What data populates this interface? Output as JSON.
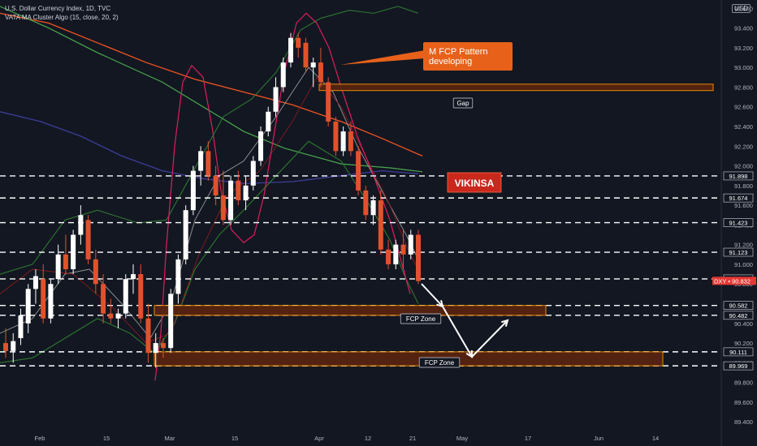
{
  "header": {
    "title": "U.S. Dollar Currency Index, 1D, TVC",
    "indicator": "VATA MA Cluster Algo (15, close, 20, 2)",
    "currency": "USD"
  },
  "annotations": {
    "callout": "M FCP Pattern\ndeveloping",
    "gap_label": "Gap",
    "fcp_zone_label": "FCP Zone",
    "brand": "VIKINSA",
    "last_price_symbol": "DXY",
    "last_price": "90.832"
  },
  "colors": {
    "background": "#131722",
    "up_candle": "#ffffff",
    "down_candle": "#e0522c",
    "zone_fill": "#5a2410",
    "zone_border": "#ff9800",
    "callout_bg": "#e8611a",
    "brand_bg": "#c9281d",
    "envelope": "#e91e63",
    "bollinger": "#2e7d32",
    "ma_orange": "#ff5722",
    "ma_green": "#4caf50",
    "ma_navy": "#3f3fa0"
  },
  "chart_data": {
    "type": "candlestick",
    "symbol": "DXY",
    "interval": "1D",
    "y_axis": {
      "ticks": [
        "93.600",
        "93.400",
        "93.200",
        "93.000",
        "92.800",
        "92.600",
        "92.400",
        "92.200",
        "92.000",
        "91.800",
        "91.600",
        "91.400",
        "91.200",
        "91.000",
        "90.800",
        "90.600",
        "90.400",
        "90.200",
        "90.000",
        "89.800",
        "89.600",
        "89.400"
      ],
      "level_labels": [
        "91.898",
        "91.674",
        "91.423",
        "91.123",
        "90.852",
        "90.582",
        "90.482",
        "90.111",
        "89.969"
      ],
      "range": [
        89.35,
        93.75
      ]
    },
    "x_axis": {
      "labels": [
        "Feb",
        "15",
        "Mar",
        "15",
        "Apr",
        "12",
        "21",
        "May",
        "17",
        "Jun",
        "14"
      ]
    },
    "horizontal_levels": [
      91.898,
      91.674,
      91.423,
      91.123,
      90.852,
      90.582,
      90.482,
      90.111,
      89.969
    ],
    "zones": [
      {
        "label": "Gap",
        "low": 92.765,
        "high": 92.83
      },
      {
        "label": "FCP Zone",
        "low": 90.482,
        "high": 90.582
      },
      {
        "label": "FCP Zone",
        "low": 89.969,
        "high": 90.111
      }
    ],
    "candles": [
      [
        90.2,
        90.35,
        90.05,
        90.12
      ],
      [
        90.12,
        90.3,
        90.0,
        90.22
      ],
      [
        90.25,
        90.55,
        90.18,
        90.48
      ],
      [
        90.4,
        90.8,
        90.3,
        90.75
      ],
      [
        90.75,
        90.95,
        90.6,
        90.88
      ],
      [
        90.85,
        91.0,
        90.4,
        90.45
      ],
      [
        90.45,
        90.85,
        90.4,
        90.8
      ],
      [
        90.85,
        91.2,
        90.8,
        91.1
      ],
      [
        91.1,
        91.3,
        90.9,
        90.95
      ],
      [
        90.95,
        91.35,
        90.9,
        91.3
      ],
      [
        91.3,
        91.6,
        91.2,
        91.5
      ],
      [
        91.45,
        91.5,
        91.0,
        91.05
      ],
      [
        91.05,
        91.15,
        90.7,
        90.8
      ],
      [
        90.8,
        90.9,
        90.4,
        90.5
      ],
      [
        90.5,
        90.65,
        90.4,
        90.45
      ],
      [
        90.45,
        90.55,
        90.35,
        90.5
      ],
      [
        90.5,
        90.9,
        90.45,
        90.85
      ],
      [
        90.85,
        91.0,
        90.7,
        90.9
      ],
      [
        90.9,
        91.0,
        90.4,
        90.45
      ],
      [
        90.45,
        90.6,
        90.0,
        90.1
      ],
      [
        90.1,
        90.3,
        89.95,
        90.2
      ],
      [
        90.2,
        90.25,
        90.05,
        90.15
      ],
      [
        90.15,
        90.75,
        90.1,
        90.7
      ],
      [
        90.7,
        91.1,
        90.6,
        91.05
      ],
      [
        91.05,
        91.6,
        91.0,
        91.55
      ],
      [
        91.55,
        92.0,
        91.5,
        91.95
      ],
      [
        91.95,
        92.2,
        91.8,
        92.15
      ],
      [
        92.15,
        92.25,
        91.85,
        91.9
      ],
      [
        91.9,
        92.0,
        91.6,
        91.7
      ],
      [
        91.7,
        91.95,
        91.4,
        91.45
      ],
      [
        91.45,
        91.9,
        91.4,
        91.85
      ],
      [
        91.85,
        91.95,
        91.6,
        91.65
      ],
      [
        91.65,
        91.9,
        91.55,
        91.8
      ],
      [
        91.8,
        92.1,
        91.75,
        92.05
      ],
      [
        92.05,
        92.4,
        92.0,
        92.35
      ],
      [
        92.35,
        92.6,
        92.3,
        92.55
      ],
      [
        92.55,
        92.9,
        92.5,
        92.8
      ],
      [
        92.8,
        93.1,
        92.75,
        93.05
      ],
      [
        93.05,
        93.35,
        93.0,
        93.3
      ],
      [
        93.3,
        93.35,
        93.1,
        93.2
      ],
      [
        93.25,
        93.3,
        92.95,
        93.0
      ],
      [
        93.0,
        93.1,
        92.8,
        93.05
      ],
      [
        93.05,
        93.2,
        92.8,
        92.85
      ],
      [
        92.85,
        92.9,
        92.4,
        92.45
      ],
      [
        92.45,
        92.5,
        92.1,
        92.15
      ],
      [
        92.15,
        92.4,
        92.1,
        92.35
      ],
      [
        92.35,
        92.45,
        92.1,
        92.15
      ],
      [
        92.15,
        92.2,
        91.7,
        91.75
      ],
      [
        91.75,
        91.8,
        91.45,
        91.5
      ],
      [
        91.5,
        91.7,
        91.4,
        91.65
      ],
      [
        91.65,
        91.75,
        91.1,
        91.15
      ],
      [
        91.15,
        91.25,
        90.95,
        91.0
      ],
      [
        91.0,
        91.25,
        90.95,
        91.2
      ],
      [
        91.2,
        91.35,
        90.95,
        91.1
      ],
      [
        91.1,
        91.35,
        91.05,
        91.3
      ],
      [
        91.3,
        91.35,
        90.8,
        90.83
      ]
    ],
    "projection": {
      "points": [
        [
          90.852,
          "Apr 22"
        ],
        [
          90.482,
          "Apr 26"
        ],
        [
          90.111,
          "Apr 30"
        ],
        [
          90.482,
          "May 4"
        ]
      ]
    }
  }
}
